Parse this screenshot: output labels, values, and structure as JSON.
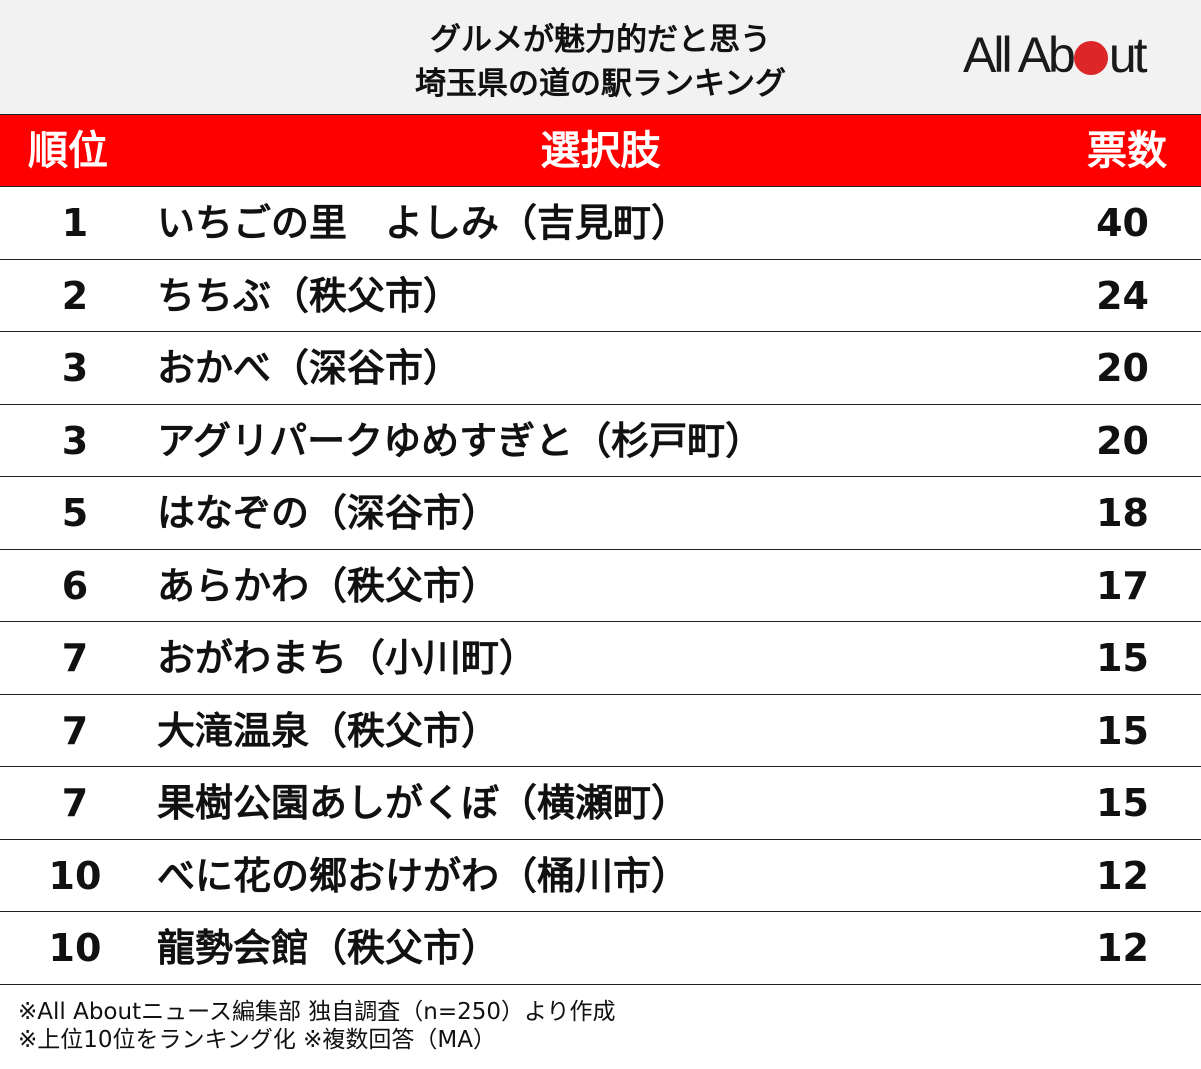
{
  "header": {
    "title_line1": "グルメが魅力的だと思う",
    "title_line2": "埼玉県の道の駅ランキング",
    "logo_left": "All Ab",
    "logo_right": "ut"
  },
  "table": {
    "columns": [
      "順位",
      "選択肢",
      "票数"
    ],
    "rows": [
      {
        "rank": "1",
        "name": "いちごの里　よしみ（吉見町）",
        "votes": "40"
      },
      {
        "rank": "2",
        "name": "ちちぶ（秩父市）",
        "votes": "24"
      },
      {
        "rank": "3",
        "name": "おかべ（深谷市）",
        "votes": "20"
      },
      {
        "rank": "3",
        "name": "アグリパークゆめすぎと（杉戸町）",
        "votes": "20"
      },
      {
        "rank": "5",
        "name": "はなぞの（深谷市）",
        "votes": "18"
      },
      {
        "rank": "6",
        "name": "あらかわ（秩父市）",
        "votes": "17"
      },
      {
        "rank": "7",
        "name": "おがわまち（小川町）",
        "votes": "15"
      },
      {
        "rank": "7",
        "name": "大滝温泉（秩父市）",
        "votes": "15"
      },
      {
        "rank": "7",
        "name": "果樹公園あしがくぼ（横瀬町）",
        "votes": "15"
      },
      {
        "rank": "10",
        "name": "べに花の郷おけがわ（桶川市）",
        "votes": "12"
      },
      {
        "rank": "10",
        "name": "龍勢会館（秩父市）",
        "votes": "12"
      }
    ]
  },
  "footnotes": {
    "line1": "※All Aboutニュース編集部 独自調査（n=250）より作成",
    "line2": "※上位10位をランキング化 ※複数回答（MA）"
  },
  "colors": {
    "header_bg": "#f2f2f2",
    "table_header_bg": "#ff0000",
    "logo_dot": "#dc2627"
  },
  "chart_data": {
    "type": "table",
    "title": "グルメが魅力的だと思う埼玉県の道の駅ランキング",
    "columns": [
      "順位",
      "選択肢",
      "票数"
    ],
    "categories": [
      "いちごの里　よしみ（吉見町）",
      "ちちぶ（秩父市）",
      "おかべ（深谷市）",
      "アグリパークゆめすぎと（杉戸町）",
      "はなぞの（深谷市）",
      "あらかわ（秩父市）",
      "おがわまち（小川町）",
      "大滝温泉（秩父市）",
      "果樹公園あしがくぼ（横瀬町）",
      "べに花の郷おけがわ（桶川市）",
      "龍勢会館（秩父市）"
    ],
    "ranks": [
      1,
      2,
      3,
      3,
      5,
      6,
      7,
      7,
      7,
      10,
      10
    ],
    "values": [
      40,
      24,
      20,
      20,
      18,
      17,
      15,
      15,
      15,
      12,
      12
    ],
    "notes": [
      "※All Aboutニュース編集部 独自調査（n=250）より作成",
      "※上位10位をランキング化 ※複数回答（MA）"
    ]
  }
}
